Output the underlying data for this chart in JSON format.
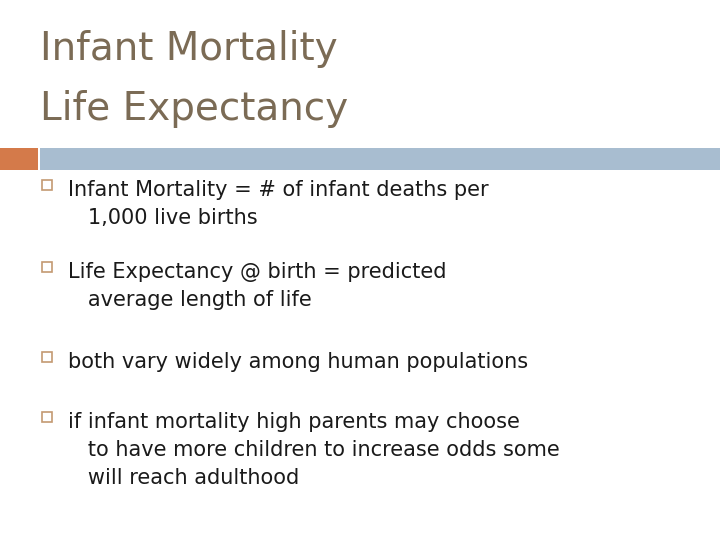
{
  "title_line1": "Infant Mortality",
  "title_line2": "Life Expectancy",
  "title_color": "#7B6B55",
  "title_fontsize": 28,
  "header_bar_color": "#A8BDD0",
  "header_accent_color": "#D47A4A",
  "background_color": "#FFFFFF",
  "bullet_color": "#1A1A1A",
  "bullet_marker_color": "#C49A72",
  "bullet_fontsize": 15,
  "bullets_group1": [
    "Infant Mortality = # of infant deaths per\n   1,000 live births",
    "Life Expectancy @ birth = predicted\n   average length of life"
  ],
  "bullets_group2": [
    "both vary widely among human populations",
    "if infant mortality high parents may choose\n   to have more children to increase odds some\n   will reach adulthood"
  ]
}
